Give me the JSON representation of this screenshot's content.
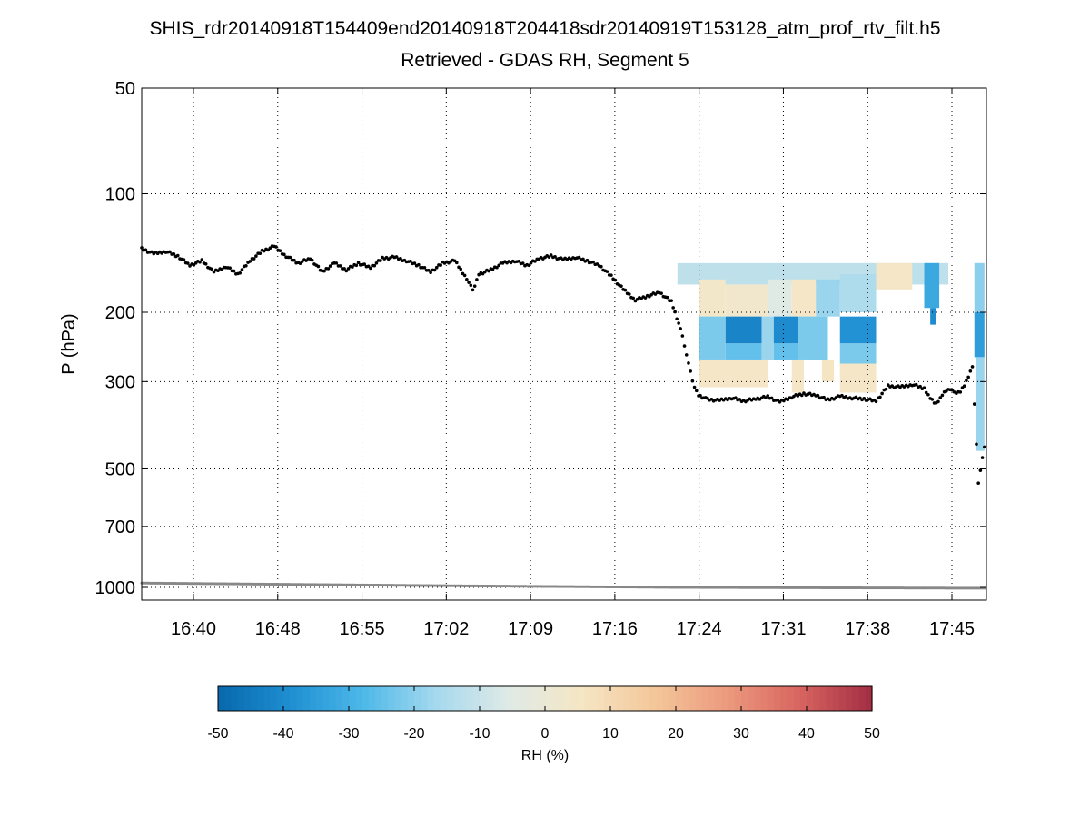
{
  "chart_data": {
    "type": "heatmap",
    "title": "SHIS_rdr20140918T154409end20140918T204418sdr20140919T153128_atm_prof_rtv_filt.h5",
    "subtitle": "Retrieved - GDAS RH, Segment 5",
    "ylabel": "P (hPa)",
    "xlabel": "",
    "y_scale": "log",
    "y_reversed": true,
    "ylim": [
      50,
      1000
    ],
    "y_ticks": [
      50,
      100,
      200,
      300,
      500,
      700,
      1000
    ],
    "y_tick_labels": [
      "50",
      "100",
      "200",
      "300",
      "500",
      "700",
      "1000"
    ],
    "xlim": [
      "16:35:30",
      "17:45:40"
    ],
    "x_tick_values": [
      "16:39:48",
      "16:46:48",
      "16:53:48",
      "17:00:48",
      "17:07:48",
      "17:14:48",
      "17:21:48",
      "17:28:48",
      "17:35:48",
      "17:42:48"
    ],
    "x_tick_labels": [
      "16:40",
      "16:48",
      "16:55",
      "17:02",
      "17:09",
      "17:16",
      "17:24",
      "17:31",
      "17:38",
      "17:45"
    ],
    "grid": true,
    "colorbar": {
      "label": "RH (%)",
      "range": [
        -50,
        50
      ],
      "ticks": [
        -50,
        -40,
        -30,
        -20,
        -10,
        0,
        10,
        20,
        30,
        40,
        50
      ],
      "tick_labels": [
        "-50",
        "-40",
        "-30",
        "-20",
        "-10",
        "0",
        "10",
        "20",
        "30",
        "40",
        "50"
      ],
      "colors": [
        "#0868ac",
        "#1f8fd2",
        "#4db8e8",
        "#a5d9ee",
        "#dfeae6",
        "#f5e6c4",
        "#f4c79a",
        "#ec9a7e",
        "#d86560",
        "#a22d44"
      ]
    },
    "heatmap_cells": [
      {
        "t_start": "17:20:00",
        "t_end": "17:42:30",
        "p_top": 150,
        "p_bottom": 170,
        "rh": -12
      },
      {
        "t_start": "17:21:45",
        "t_end": "17:24:00",
        "p_top": 165,
        "p_bottom": 205,
        "rh": 4
      },
      {
        "t_start": "17:24:00",
        "t_end": "17:27:30",
        "p_top": 170,
        "p_bottom": 205,
        "rh": 3
      },
      {
        "t_start": "17:27:30",
        "t_end": "17:29:30",
        "p_top": 165,
        "p_bottom": 205,
        "rh": -5
      },
      {
        "t_start": "17:29:30",
        "t_end": "17:31:30",
        "p_top": 165,
        "p_bottom": 205,
        "rh": 5
      },
      {
        "t_start": "17:31:30",
        "t_end": "17:33:30",
        "p_top": 165,
        "p_bottom": 205,
        "rh": -18
      },
      {
        "t_start": "17:33:30",
        "t_end": "17:36:30",
        "p_top": 160,
        "p_bottom": 200,
        "rh": -15
      },
      {
        "t_start": "17:36:30",
        "t_end": "17:39:30",
        "p_top": 150,
        "p_bottom": 175,
        "rh": 5
      },
      {
        "t_start": "17:21:45",
        "t_end": "17:24:00",
        "p_top": 205,
        "p_bottom": 265,
        "rh": -22
      },
      {
        "t_start": "17:24:00",
        "t_end": "17:27:00",
        "p_top": 205,
        "p_bottom": 240,
        "rh": -42
      },
      {
        "t_start": "17:24:00",
        "t_end": "17:27:00",
        "p_top": 240,
        "p_bottom": 265,
        "rh": -25
      },
      {
        "t_start": "17:27:00",
        "t_end": "17:28:00",
        "p_top": 205,
        "p_bottom": 265,
        "rh": -18
      },
      {
        "t_start": "17:28:00",
        "t_end": "17:30:00",
        "p_top": 205,
        "p_bottom": 240,
        "rh": -40
      },
      {
        "t_start": "17:28:00",
        "t_end": "17:30:00",
        "p_top": 240,
        "p_bottom": 265,
        "rh": -25
      },
      {
        "t_start": "17:30:00",
        "t_end": "17:32:30",
        "p_top": 205,
        "p_bottom": 265,
        "rh": -22
      },
      {
        "t_start": "17:33:30",
        "t_end": "17:36:30",
        "p_top": 205,
        "p_bottom": 240,
        "rh": -38
      },
      {
        "t_start": "17:33:30",
        "t_end": "17:36:30",
        "p_top": 240,
        "p_bottom": 270,
        "rh": -22
      },
      {
        "t_start": "17:21:45",
        "t_end": "17:27:30",
        "p_top": 265,
        "p_bottom": 310,
        "rh": 5
      },
      {
        "t_start": "17:29:30",
        "t_end": "17:30:30",
        "p_top": 265,
        "p_bottom": 320,
        "rh": 5
      },
      {
        "t_start": "17:32:00",
        "t_end": "17:33:00",
        "p_top": 265,
        "p_bottom": 300,
        "rh": 6
      },
      {
        "t_start": "17:33:30",
        "t_end": "17:36:30",
        "p_top": 270,
        "p_bottom": 320,
        "rh": 5
      },
      {
        "t_start": "17:40:30",
        "t_end": "17:41:45",
        "p_top": 150,
        "p_bottom": 195,
        "rh": -32
      },
      {
        "t_start": "17:41:00",
        "t_end": "17:41:30",
        "p_top": 195,
        "p_bottom": 215,
        "rh": -40
      },
      {
        "t_start": "17:44:40",
        "t_end": "17:45:30",
        "p_top": 150,
        "p_bottom": 200,
        "rh": -20
      },
      {
        "t_start": "17:44:40",
        "t_end": "17:45:30",
        "p_top": 200,
        "p_bottom": 260,
        "rh": -35
      },
      {
        "t_start": "17:44:50",
        "t_end": "17:45:30",
        "p_top": 260,
        "p_bottom": 450,
        "rh": -18
      }
    ],
    "series": [
      {
        "marker": "black dots",
        "x": [
          "16:35:30",
          "16:36:30",
          "16:37:30",
          "16:38:30",
          "16:39:30",
          "16:40:30",
          "16:41:30",
          "16:42:30",
          "16:43:30",
          "16:44:30",
          "16:45:30",
          "16:46:30",
          "16:47:30",
          "16:48:30",
          "16:49:30",
          "16:50:30",
          "16:51:30",
          "16:52:30",
          "16:53:30",
          "16:54:30",
          "16:55:30",
          "16:56:30",
          "16:57:30",
          "16:58:30",
          "16:59:30",
          "17:00:30",
          "17:01:30",
          "17:02:30",
          "17:03:00",
          "17:03:30",
          "17:04:30",
          "17:05:30",
          "17:06:30",
          "17:07:30",
          "17:08:30",
          "17:09:30",
          "17:10:30",
          "17:11:30",
          "17:12:30",
          "17:13:30",
          "17:14:30",
          "17:15:30",
          "17:16:30",
          "17:17:30",
          "17:18:30",
          "17:19:30",
          "17:20:15",
          "17:20:45",
          "17:21:15",
          "17:21:45",
          "17:22:30",
          "17:23:30",
          "17:24:30",
          "17:25:30",
          "17:26:30",
          "17:27:30",
          "17:28:30",
          "17:29:30",
          "17:30:30",
          "17:31:30",
          "17:32:30",
          "17:33:30",
          "17:34:30",
          "17:35:30",
          "17:36:30",
          "17:37:30",
          "17:38:30",
          "17:39:30",
          "17:40:30",
          "17:41:00",
          "17:41:30",
          "17:42:00",
          "17:42:30",
          "17:43:00",
          "17:43:30",
          "17:44:00",
          "17:44:30",
          "17:45:00",
          "17:45:30"
        ],
        "y": [
          138,
          142,
          140,
          144,
          152,
          148,
          158,
          153,
          160,
          148,
          140,
          136,
          144,
          150,
          146,
          158,
          150,
          156,
          150,
          154,
          146,
          145,
          148,
          152,
          158,
          150,
          148,
          164,
          176,
          160,
          156,
          150,
          148,
          152,
          146,
          144,
          147,
          145,
          148,
          152,
          162,
          175,
          186,
          182,
          178,
          188,
          220,
          255,
          300,
          325,
          333,
          335,
          330,
          336,
          332,
          328,
          338,
          328,
          322,
          325,
          334,
          327,
          330,
          332,
          336,
          308,
          310,
          305,
          312,
          330,
          342,
          325,
          312,
          320,
          318,
          300,
          275,
          540,
          440
        ]
      },
      {
        "marker": "grey dots",
        "x": [
          "16:35:30",
          "17:00:00",
          "17:20:00",
          "17:45:40"
        ],
        "y": [
          975,
          990,
          1000,
          1005
        ]
      }
    ]
  }
}
